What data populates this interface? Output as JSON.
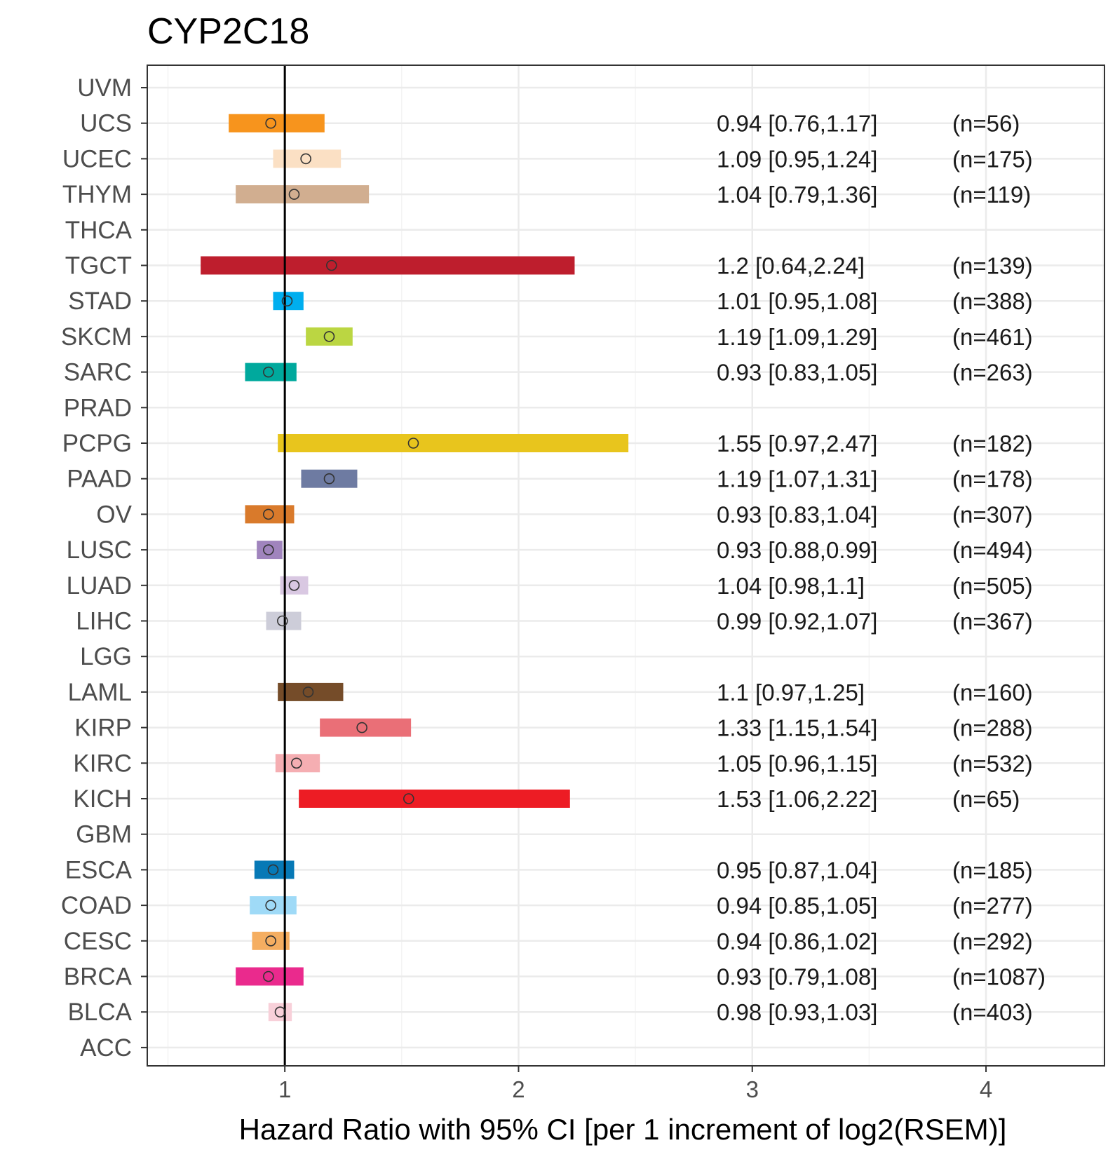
{
  "chart_data": {
    "type": "forest",
    "title": "CYP2C18",
    "xlabel": "Hazard Ratio with 95% CI [per 1 increment of log2(RSEM)]",
    "ylabel": "",
    "xlim": [
      0.5,
      4.5
    ],
    "x_ticks": [
      1,
      2,
      3,
      4
    ],
    "x_tick_labels": [
      "1",
      "2",
      "3",
      "4"
    ],
    "reference_line": 1,
    "grid": true,
    "rows": [
      {
        "cancer": "UVM",
        "hr": null,
        "lower": null,
        "upper": null,
        "label": "",
        "n": "",
        "color": ""
      },
      {
        "cancer": "UCS",
        "hr": 0.94,
        "lower": 0.76,
        "upper": 1.17,
        "label": "0.94 [0.76,1.17]",
        "n": "(n=56)",
        "color": "#f7941d"
      },
      {
        "cancer": "UCEC",
        "hr": 1.09,
        "lower": 0.95,
        "upper": 1.24,
        "label": "1.09 [0.95,1.24]",
        "n": "(n=175)",
        "color": "#fbe0c4"
      },
      {
        "cancer": "THYM",
        "hr": 1.04,
        "lower": 0.79,
        "upper": 1.36,
        "label": "1.04 [0.79,1.36]",
        "n": "(n=119)",
        "color": "#d1ae90"
      },
      {
        "cancer": "THCA",
        "hr": null,
        "lower": null,
        "upper": null,
        "label": "",
        "n": "",
        "color": ""
      },
      {
        "cancer": "TGCT",
        "hr": 1.2,
        "lower": 0.64,
        "upper": 2.24,
        "label": "1.2 [0.64,2.24]",
        "n": "(n=139)",
        "color": "#be1e2d"
      },
      {
        "cancer": "STAD",
        "hr": 1.01,
        "lower": 0.95,
        "upper": 1.08,
        "label": "1.01 [0.95,1.08]",
        "n": "(n=388)",
        "color": "#00aeef"
      },
      {
        "cancer": "SKCM",
        "hr": 1.19,
        "lower": 1.09,
        "upper": 1.29,
        "label": "1.19 [1.09,1.29]",
        "n": "(n=461)",
        "color": "#bbd642"
      },
      {
        "cancer": "SARC",
        "hr": 0.93,
        "lower": 0.83,
        "upper": 1.05,
        "label": "0.93 [0.83,1.05]",
        "n": "(n=263)",
        "color": "#00a99d"
      },
      {
        "cancer": "PRAD",
        "hr": null,
        "lower": null,
        "upper": null,
        "label": "",
        "n": "",
        "color": ""
      },
      {
        "cancer": "PCPG",
        "hr": 1.55,
        "lower": 0.97,
        "upper": 2.47,
        "label": "1.55 [0.97,2.47]",
        "n": "(n=182)",
        "color": "#e8c51d"
      },
      {
        "cancer": "PAAD",
        "hr": 1.19,
        "lower": 1.07,
        "upper": 1.31,
        "label": "1.19 [1.07,1.31]",
        "n": "(n=178)",
        "color": "#6e7ba2"
      },
      {
        "cancer": "OV",
        "hr": 0.93,
        "lower": 0.83,
        "upper": 1.04,
        "label": "0.93 [0.83,1.04]",
        "n": "(n=307)",
        "color": "#d97a2b"
      },
      {
        "cancer": "LUSC",
        "hr": 0.93,
        "lower": 0.88,
        "upper": 0.99,
        "label": "0.93 [0.88,0.99]",
        "n": "(n=494)",
        "color": "#a084bd"
      },
      {
        "cancer": "LUAD",
        "hr": 1.04,
        "lower": 0.98,
        "upper": 1.1,
        "label": "1.04 [0.98,1.1]",
        "n": "(n=505)",
        "color": "#d9c8e2"
      },
      {
        "cancer": "LIHC",
        "hr": 0.99,
        "lower": 0.92,
        "upper": 1.07,
        "label": "0.99 [0.92,1.07]",
        "n": "(n=367)",
        "color": "#cdcdd9"
      },
      {
        "cancer": "LGG",
        "hr": null,
        "lower": null,
        "upper": null,
        "label": "",
        "n": "",
        "color": ""
      },
      {
        "cancer": "LAML",
        "hr": 1.1,
        "lower": 0.97,
        "upper": 1.25,
        "label": "1.1 [0.97,1.25]",
        "n": "(n=160)",
        "color": "#754c29"
      },
      {
        "cancer": "KIRP",
        "hr": 1.33,
        "lower": 1.15,
        "upper": 1.54,
        "label": "1.33 [1.15,1.54]",
        "n": "(n=288)",
        "color": "#ea6f77"
      },
      {
        "cancer": "KIRC",
        "hr": 1.05,
        "lower": 0.96,
        "upper": 1.15,
        "label": "1.05 [0.96,1.15]",
        "n": "(n=532)",
        "color": "#f5aeb2"
      },
      {
        "cancer": "KICH",
        "hr": 1.53,
        "lower": 1.06,
        "upper": 2.22,
        "label": "1.53 [1.06,2.22]",
        "n": "(n=65)",
        "color": "#ed1c24"
      },
      {
        "cancer": "GBM",
        "hr": null,
        "lower": null,
        "upper": null,
        "label": "",
        "n": "",
        "color": ""
      },
      {
        "cancer": "ESCA",
        "hr": 0.95,
        "lower": 0.87,
        "upper": 1.04,
        "label": "0.95 [0.87,1.04]",
        "n": "(n=185)",
        "color": "#0779b6"
      },
      {
        "cancer": "COAD",
        "hr": 0.94,
        "lower": 0.85,
        "upper": 1.05,
        "label": "0.94 [0.85,1.05]",
        "n": "(n=277)",
        "color": "#9fdaf7"
      },
      {
        "cancer": "CESC",
        "hr": 0.94,
        "lower": 0.86,
        "upper": 1.02,
        "label": "0.94 [0.86,1.02]",
        "n": "(n=292)",
        "color": "#f5ae61"
      },
      {
        "cancer": "BRCA",
        "hr": 0.93,
        "lower": 0.79,
        "upper": 1.08,
        "label": "0.93 [0.79,1.08]",
        "n": "(n=1087)",
        "color": "#ea2a8d"
      },
      {
        "cancer": "BLCA",
        "hr": 0.98,
        "lower": 0.93,
        "upper": 1.03,
        "label": "0.98 [0.93,1.03]",
        "n": "(n=403)",
        "color": "#f8d0d9"
      },
      {
        "cancer": "ACC",
        "hr": null,
        "lower": null,
        "upper": null,
        "label": "",
        "n": "",
        "color": ""
      }
    ]
  },
  "colors": {
    "panel_border": "#333333",
    "grid_major": "#ebebeb",
    "grid_minor": "#f4f4f4",
    "reference_line": "#000000",
    "point_stroke": "#333333"
  }
}
